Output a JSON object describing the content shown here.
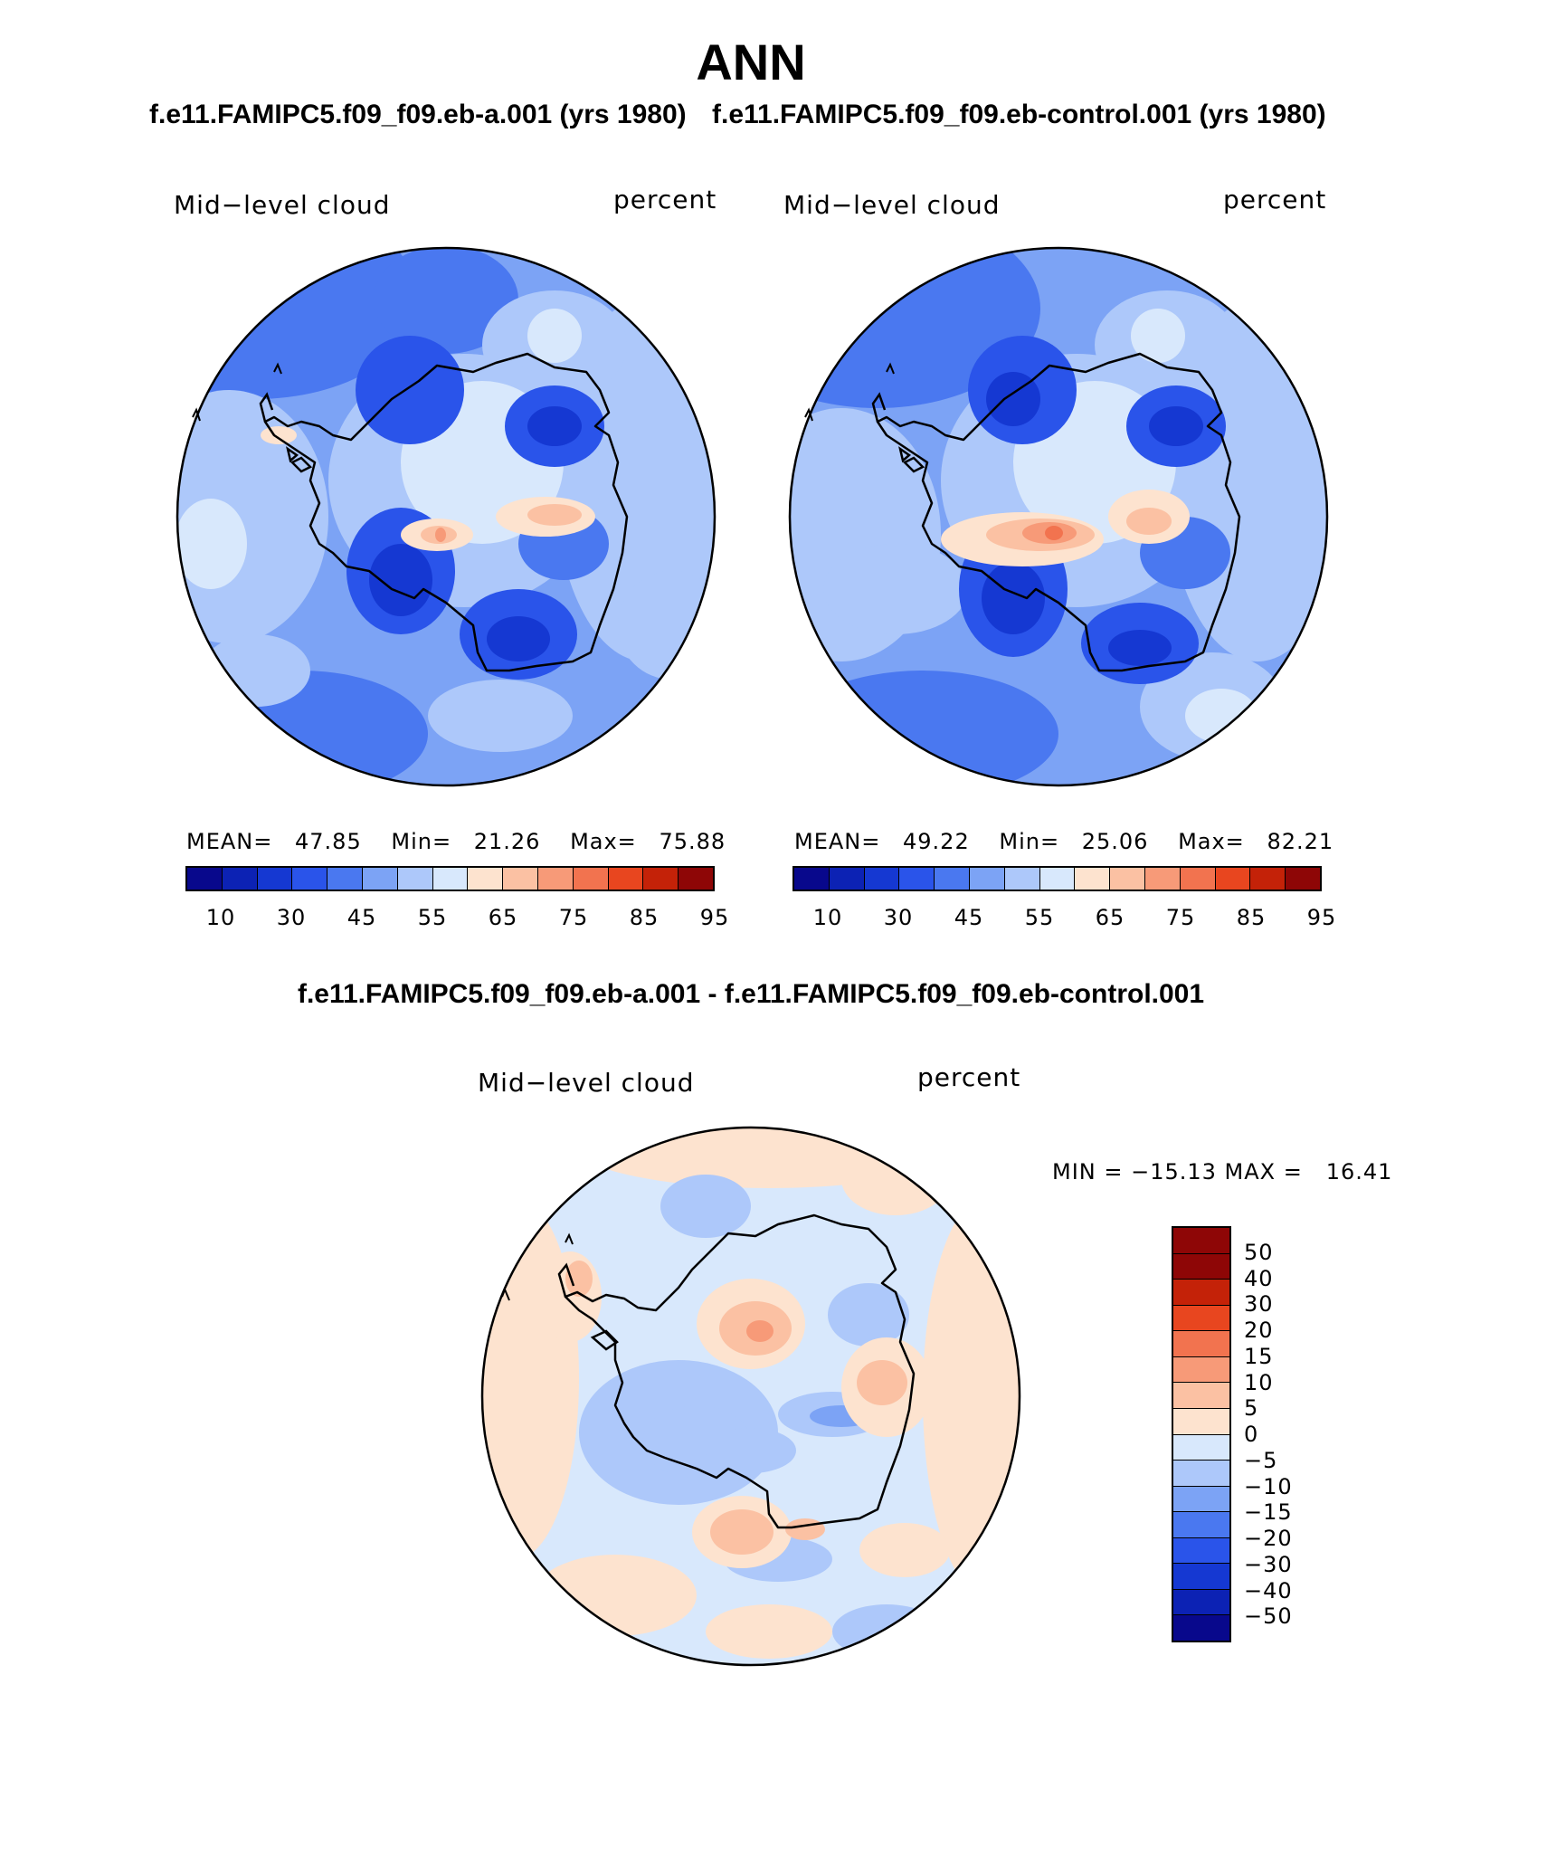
{
  "title": "ANN",
  "panels": [
    {
      "case_title": "f.e11.FAMIPC5.f09_f09.eb-a.001 (yrs 1980)",
      "field_label": "Mid−level cloud",
      "units_label": "percent",
      "stats": {
        "mean_label": "MEAN=",
        "mean": "47.85",
        "min_label": "Min=",
        "min": "21.26",
        "max_label": "Max=",
        "max": "75.88"
      },
      "colorbar_labels": [
        "10",
        "30",
        "45",
        "55",
        "65",
        "75",
        "85",
        "95"
      ]
    },
    {
      "case_title": "f.e11.FAMIPC5.f09_f09.eb-control.001 (yrs 1980)",
      "field_label": "Mid−level cloud",
      "units_label": "percent",
      "stats": {
        "mean_label": "MEAN=",
        "mean": "49.22",
        "min_label": "Min=",
        "min": "25.06",
        "max_label": "Max=",
        "max": "82.21"
      },
      "colorbar_labels": [
        "10",
        "30",
        "45",
        "55",
        "65",
        "75",
        "85",
        "95"
      ]
    }
  ],
  "diff_panel": {
    "case_title": "f.e11.FAMIPC5.f09_f09.eb-a.001 - f.e11.FAMIPC5.f09_f09.eb-control.001",
    "field_label": "Mid−level cloud",
    "units_label": "percent",
    "minmax": "MIN = −15.13 MAX =   16.41",
    "colorbar_labels": [
      "50",
      "40",
      "30",
      "20",
      "15",
      "10",
      "5",
      "0",
      "−5",
      "−10",
      "−15",
      "−20",
      "−30",
      "−40",
      "−50"
    ]
  },
  "colors": {
    "field_scale": [
      "#08088c",
      "#0c22b4",
      "#1538d2",
      "#2a54ea",
      "#4a78f0",
      "#7ca3f5",
      "#adc8fa",
      "#d8e8fc",
      "#fde3cf",
      "#fbc1a3",
      "#f79a78",
      "#f2734f",
      "#e8461f",
      "#c42208",
      "#8e0606"
    ],
    "diff_scale": [
      "#8e0606",
      "#c42208",
      "#e8461f",
      "#f2734f",
      "#f79a78",
      "#fbc1a3",
      "#fde3cf",
      "#d8e8fc",
      "#adc8fa",
      "#7ca3f5",
      "#4a78f0",
      "#2a54ea",
      "#1538d2",
      "#0c22b4",
      "#08088c"
    ]
  }
}
